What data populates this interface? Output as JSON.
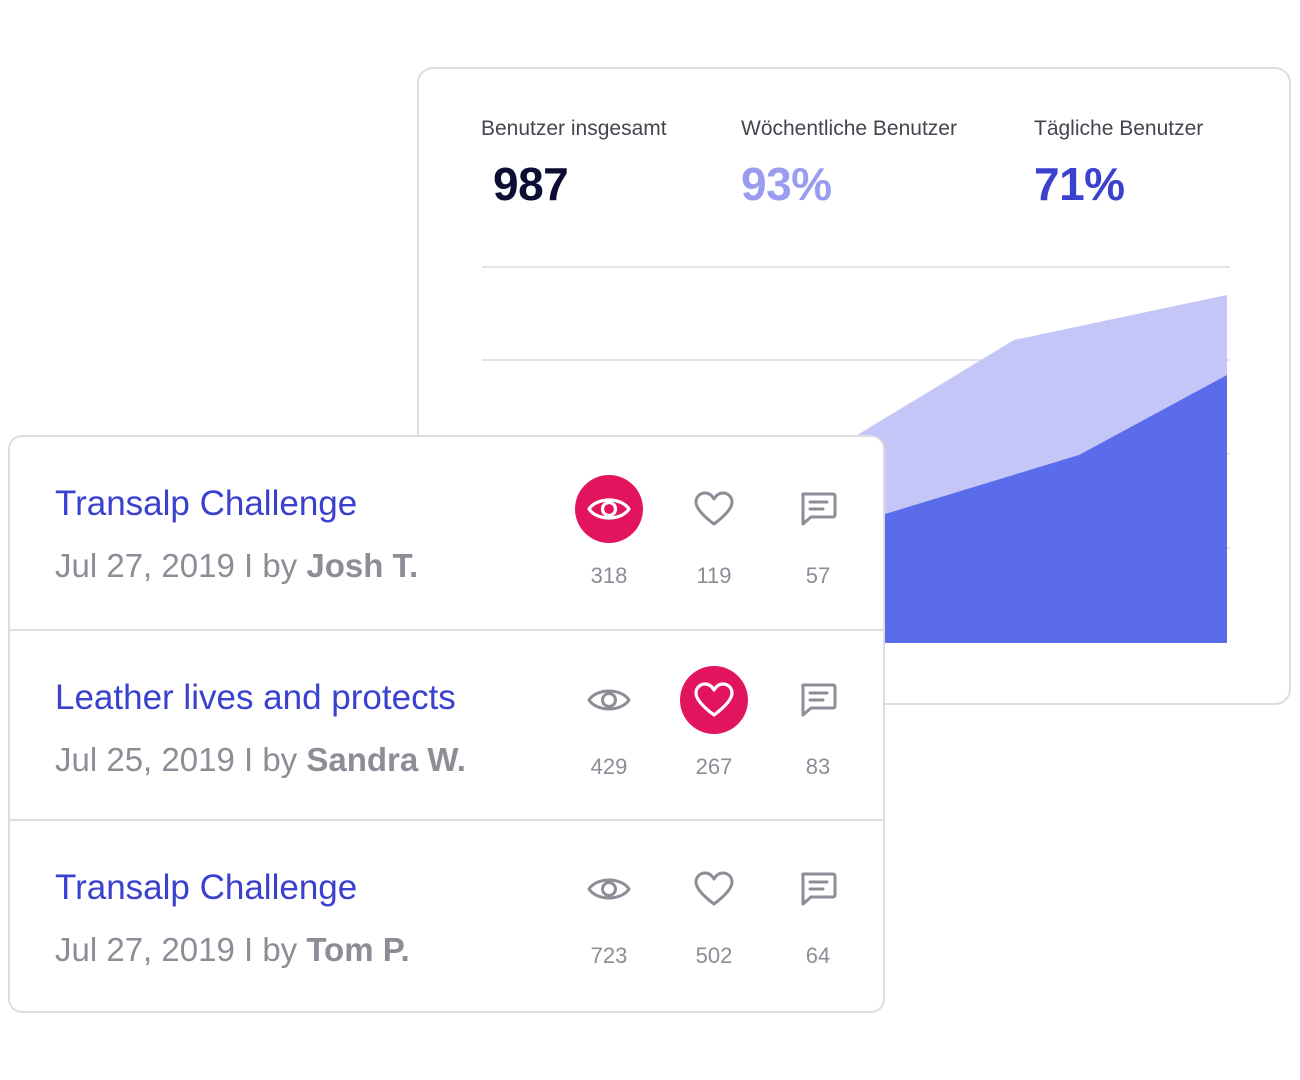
{
  "stats": {
    "total_label": "Benutzer insgesamt",
    "total_value": "987",
    "weekly_label": "Wöchentliche Benutzer",
    "weekly_value": "93%",
    "daily_label": "Tägliche Benutzer",
    "daily_value": "71%"
  },
  "colors": {
    "total_value": "#0d0d33",
    "weekly_value": "#9a9cf0",
    "daily_value": "#3b41cf",
    "weekly_area": "#c3c6f7",
    "daily_area": "#5b6cea",
    "accent_active": "#e2145e",
    "title_link": "#3b41cf",
    "muted_text": "#8c8d96"
  },
  "posts": [
    {
      "title": "Transalp Challenge",
      "date": "Jul 27, 2019 I by ",
      "author": "Josh T.",
      "views": "318",
      "likes": "119",
      "comments": "57",
      "active": "views"
    },
    {
      "title": "Leather lives and protects",
      "date": "Jul 25, 2019 I by ",
      "author": "Sandra W.",
      "views": "429",
      "likes": "267",
      "comments": "83",
      "active": "likes"
    },
    {
      "title": "Transalp Challenge",
      "date": "Jul 27, 2019 I by ",
      "author": "Tom P.",
      "views": "723",
      "likes": "502",
      "comments": "64",
      "active": "none"
    }
  ],
  "icons": {
    "views": "eye-icon",
    "likes": "heart-icon",
    "comments": "comment-icon"
  }
}
